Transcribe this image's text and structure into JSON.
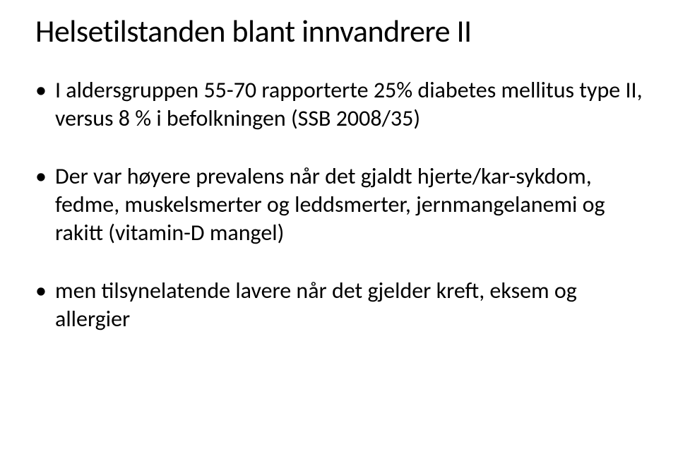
{
  "slide": {
    "title": "Helsetilstanden blant innvandrere II",
    "bullets": [
      "I aldersgruppen 55-70 rapporterte 25% diabetes mellitus type II, versus 8 %  i befolkningen (SSB 2008/35)",
      "Der var høyere prevalens når det gjaldt hjerte/kar-sykdom, fedme, muskelsmerter og leddsmerter, jernmangelanemi og rakitt (vitamin-D mangel)",
      "men tilsynelatende lavere når det gjelder kreft, eksem og allergier"
    ],
    "style": {
      "background_color": "#ffffff",
      "text_color": "#000000",
      "title_fontsize": 44,
      "body_fontsize": 32,
      "font_family": "Calibri",
      "bullet_char": "•",
      "slide_width": 960,
      "slide_height": 650
    }
  }
}
